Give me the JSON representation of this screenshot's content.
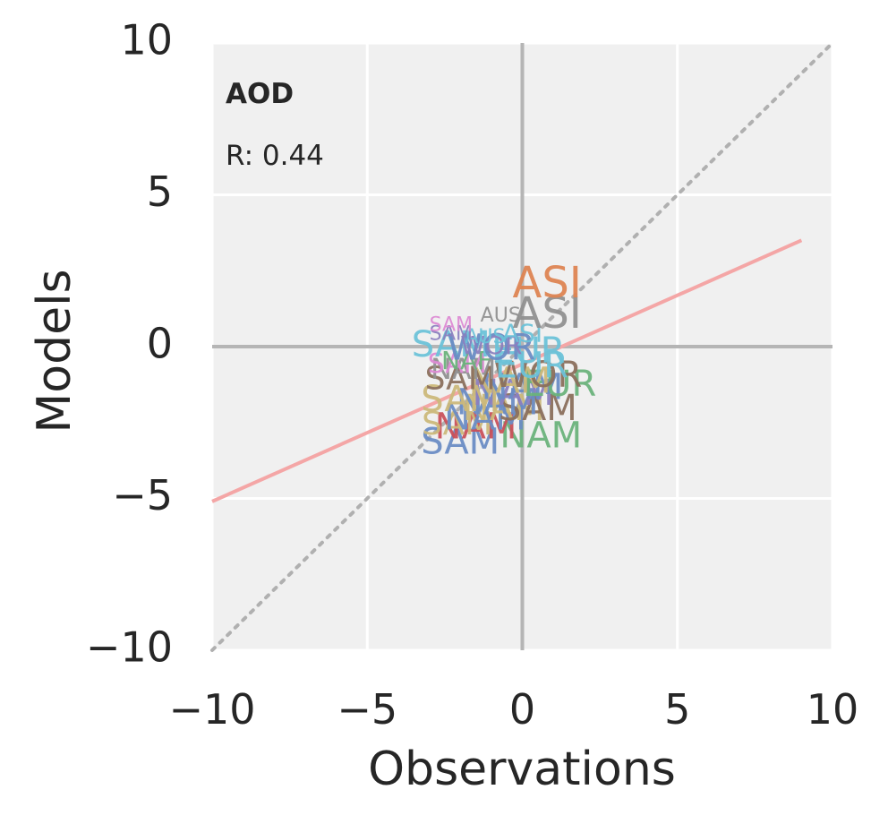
{
  "chart_data": {
    "type": "scatter",
    "title": "AOD",
    "annotation": "R: 0.44",
    "xlabel": "Observations",
    "ylabel": "Models",
    "xlim": [
      -10,
      10
    ],
    "ylim": [
      -10,
      10
    ],
    "xticks": [
      "−10",
      "−5",
      "0",
      "5",
      "10"
    ],
    "yticks": [
      "−10",
      "−5",
      "0",
      "5",
      "10"
    ],
    "grid": true,
    "zero_lines": true,
    "identity_line": {
      "style": "dotted",
      "color": "#b0b0b0"
    },
    "regression_line": {
      "x": [
        -10,
        9
      ],
      "y": [
        -5.1,
        3.5
      ],
      "color": "#f4a6a6"
    },
    "colors": {
      "blue": "#6a8cc4",
      "green": "#6ab27b",
      "red": "#c9505a",
      "purple": "#8b7fbf",
      "yellow": "#cbb87a",
      "cyan": "#6cc2d8",
      "brown": "#8a6f5c",
      "pink": "#dc8ad3",
      "gray": "#909090",
      "orange": "#dd8452"
    },
    "points": [
      {
        "label": "SAM",
        "x": -2.0,
        "y": -3.2,
        "color": "blue",
        "size": 1.0
      },
      {
        "label": "NAM",
        "x": 0.6,
        "y": -3.0,
        "color": "green",
        "size": 1.0
      },
      {
        "label": "NAM",
        "x": -1.5,
        "y": -2.7,
        "color": "red",
        "size": 1.0
      },
      {
        "label": "SAM",
        "x": -2.1,
        "y": -2.6,
        "color": "yellow",
        "size": 0.9
      },
      {
        "label": "NAM",
        "x": -1.2,
        "y": -2.4,
        "color": "blue",
        "size": 1.0
      },
      {
        "label": "NAM",
        "x": -0.6,
        "y": -2.1,
        "color": "yellow",
        "size": 1.0
      },
      {
        "label": "SAM",
        "x": 0.5,
        "y": -2.1,
        "color": "brown",
        "size": 1.0
      },
      {
        "label": "NAM",
        "x": -0.8,
        "y": -1.9,
        "color": "blue",
        "size": 1.0
      },
      {
        "label": "NAM",
        "x": -0.3,
        "y": -1.6,
        "color": "purple",
        "size": 1.0
      },
      {
        "label": "SAM",
        "x": -2.0,
        "y": -1.8,
        "color": "yellow",
        "size": 1.0
      },
      {
        "label": "NAM",
        "x": 0.0,
        "y": -1.4,
        "color": "blue",
        "size": 1.0
      },
      {
        "label": "EUR",
        "x": 1.2,
        "y": -1.3,
        "color": "green",
        "size": 1.0
      },
      {
        "label": "NAM",
        "x": -0.4,
        "y": -1.2,
        "color": "yellow",
        "size": 1.0
      },
      {
        "label": "SAM",
        "x": -2.0,
        "y": -1.1,
        "color": "brown",
        "size": 0.9
      },
      {
        "label": "WOR",
        "x": 0.5,
        "y": -1.0,
        "color": "brown",
        "size": 1.0
      },
      {
        "label": "NAM",
        "x": -1.9,
        "y": -0.8,
        "color": "gray",
        "size": 0.8
      },
      {
        "label": "EUR",
        "x": 0.3,
        "y": -0.7,
        "color": "cyan",
        "size": 1.0
      },
      {
        "label": "SAM",
        "x": -2.1,
        "y": -0.6,
        "color": "pink",
        "size": 0.75
      },
      {
        "label": "NAF",
        "x": -1.8,
        "y": -0.5,
        "color": "green",
        "size": 0.7
      },
      {
        "label": "EUR",
        "x": 0.2,
        "y": -0.2,
        "color": "cyan",
        "size": 1.0
      },
      {
        "label": "SAM",
        "x": -2.3,
        "y": 0.0,
        "color": "cyan",
        "size": 1.0
      },
      {
        "label": "WOR",
        "x": -1.0,
        "y": -0.1,
        "color": "blue",
        "size": 1.0
      },
      {
        "label": "WOR",
        "x": -1.0,
        "y": 0.0,
        "color": "purple",
        "size": 0.7
      },
      {
        "label": "ASI",
        "x": 0.0,
        "y": 0.4,
        "color": "cyan",
        "size": 0.7
      },
      {
        "label": "AUS",
        "x": -1.2,
        "y": 0.3,
        "color": "cyan",
        "size": 0.55
      },
      {
        "label": "SAM",
        "x": -2.3,
        "y": 0.4,
        "color": "purple",
        "size": 0.55
      },
      {
        "label": "SAM",
        "x": -2.3,
        "y": 0.7,
        "color": "pink",
        "size": 0.55
      },
      {
        "label": "AUS",
        "x": -0.7,
        "y": 1.0,
        "color": "gray",
        "size": 0.55
      },
      {
        "label": "ASI",
        "x": 0.8,
        "y": 1.0,
        "color": "gray",
        "size": 1.2
      },
      {
        "label": "ASI",
        "x": 0.8,
        "y": 2.0,
        "color": "orange",
        "size": 1.2
      }
    ]
  }
}
